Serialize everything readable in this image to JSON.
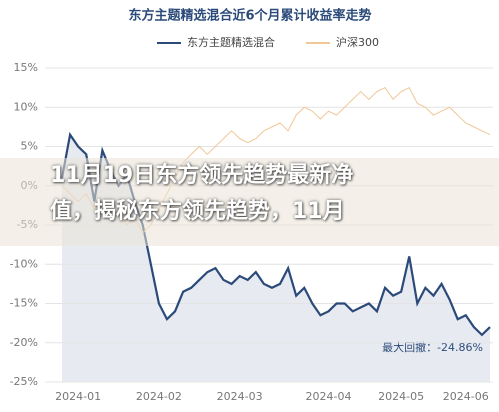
{
  "chart_data": {
    "type": "line",
    "title": "东方主题精选混合近6个月累计收益率走势",
    "categories": [
      null,
      null,
      "2024-01",
      null,
      null,
      null,
      null,
      null,
      null,
      null,
      null,
      null,
      "2024-02",
      null,
      null,
      null,
      null,
      null,
      null,
      null,
      null,
      null,
      "2024-03",
      null,
      null,
      null,
      null,
      null,
      null,
      null,
      null,
      null,
      null,
      "2024-04",
      null,
      null,
      null,
      null,
      null,
      null,
      null,
      null,
      "2024-05",
      null,
      null,
      null,
      null,
      null,
      null,
      null,
      "2024-06",
      null,
      null,
      null
    ],
    "series": [
      {
        "name": "东方主题精选混合",
        "color": "#2b4a7a",
        "area": true,
        "values": [
          1,
          6.5,
          5,
          4,
          -2,
          4.5,
          2,
          0,
          1.5,
          -2,
          -5,
          -10,
          -15,
          -17,
          -16,
          -13.5,
          -13,
          -12,
          -11,
          -10.5,
          -12,
          -12.5,
          -11.5,
          -12,
          -11,
          -12.5,
          -13,
          -12.5,
          -10.5,
          -14,
          -13,
          -15,
          -16.5,
          -16,
          -15,
          -15,
          -16,
          -15.5,
          -15,
          -16,
          -13,
          -14,
          -13.5,
          -9,
          -15,
          -13,
          -14,
          -12.5,
          -14.5,
          -17,
          -16.5,
          -18,
          -19,
          -18
        ]
      },
      {
        "name": "沪深300",
        "color": "#f0c898",
        "values": [
          0,
          -1,
          -2,
          -1,
          -3,
          -2,
          -4,
          -3,
          -5,
          -4,
          -6,
          -5,
          -3,
          -1,
          1,
          3,
          4,
          5,
          4,
          5,
          6,
          7,
          6,
          5.5,
          6,
          7,
          7.5,
          8,
          7,
          9,
          10,
          9.5,
          8.5,
          9.5,
          9,
          10,
          11,
          12,
          11,
          12,
          12.5,
          11,
          12,
          12.5,
          10.5,
          10,
          9,
          9.5,
          10,
          9,
          8,
          7.5,
          7,
          6.5
        ]
      }
    ],
    "ylim": [
      -25,
      15
    ],
    "yticks": [
      {
        "value": 15,
        "label": "15%"
      },
      {
        "value": 10,
        "label": "10%"
      },
      {
        "value": 5,
        "label": "5%"
      },
      {
        "value": 0,
        "label": "0%"
      },
      {
        "value": -5,
        "label": "-5%"
      },
      {
        "value": -10,
        "label": "-10%"
      },
      {
        "value": -15,
        "label": "-15%"
      },
      {
        "value": -20,
        "label": "-20%"
      },
      {
        "value": -25,
        "label": "-25%"
      }
    ],
    "grid": true,
    "annotation": "最大回撤：-24.86%"
  },
  "banner": {
    "lines": [
      "11月19日东方领先趋势最新净",
      "值，揭秘东方领先趋势，11月"
    ]
  }
}
